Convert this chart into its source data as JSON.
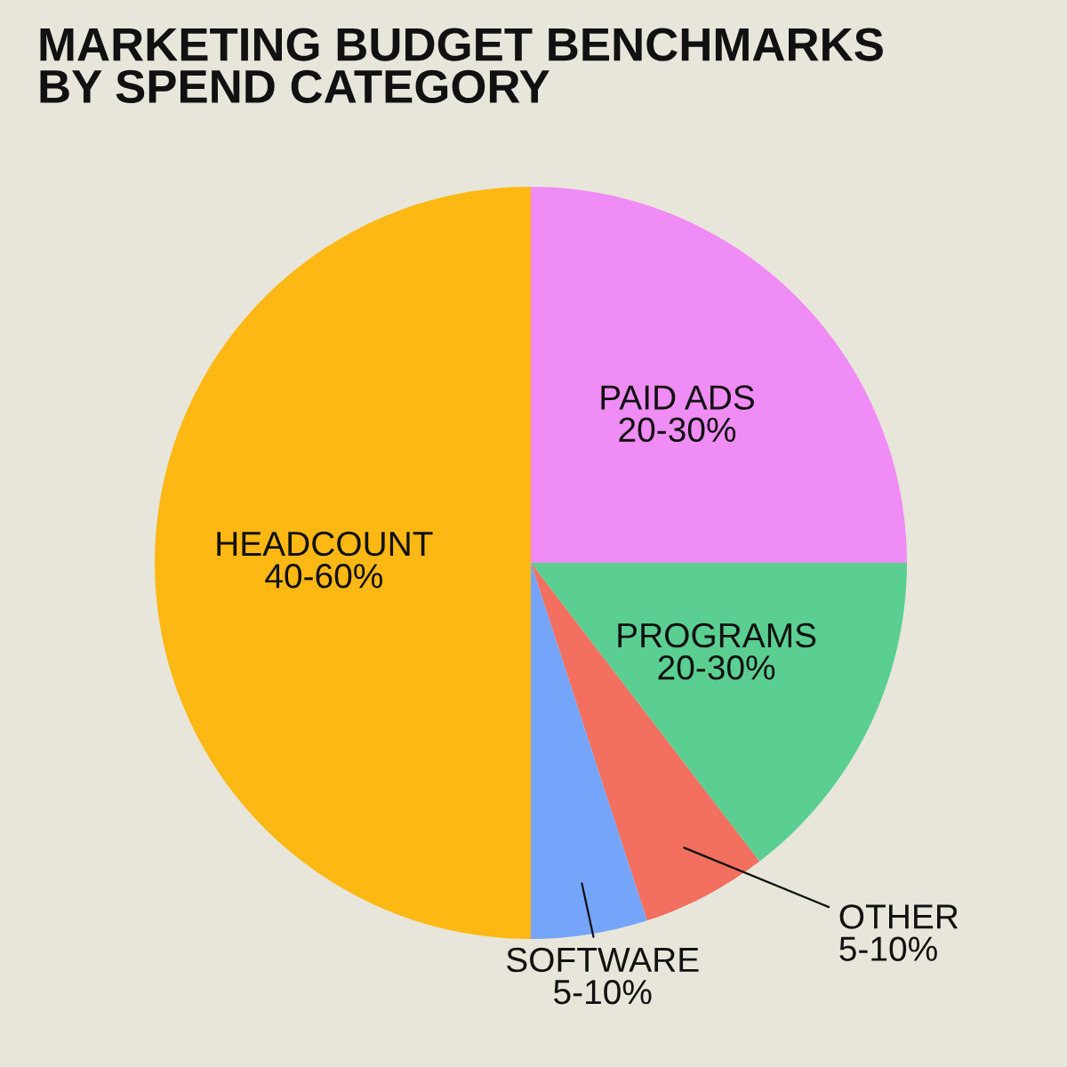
{
  "chart_data": {
    "type": "pie",
    "title": "MARKETING BUDGET BENCHMARKS\nBY SPEND CATEGORY",
    "categories": [
      "PAID ADS\n20-30%",
      "PROGRAMS\n20-30%",
      "OTHER\n5-10%",
      "SOFTWARE\n5-10%",
      "HEADCOUNT\n40-60%"
    ],
    "values": [
      25,
      14.6,
      5.4,
      5,
      50
    ],
    "colors": [
      "#f08cf5",
      "#5bcf92",
      "#f36f5f",
      "#74a5fb",
      "#fdb813"
    ]
  }
}
